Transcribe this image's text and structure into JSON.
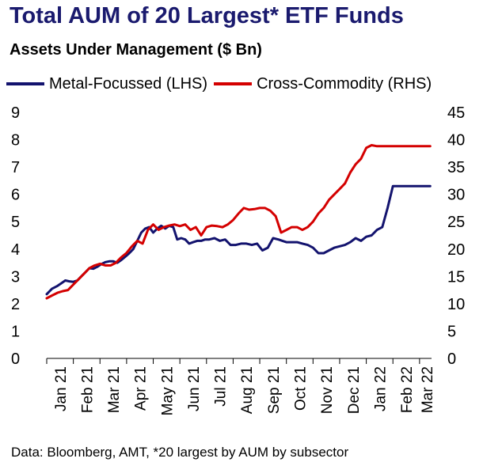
{
  "title": "Total AUM of 20 Largest* ETF Funds",
  "subtitle": "Assets Under Management ($ Bn)",
  "source": "Data: Bloomberg, AMT, *20 largest by AUM by subsector",
  "colors": {
    "title": "#1a1a6e",
    "metal": "#13136e",
    "cross": "#d40000",
    "axis": "#000000"
  },
  "chart_data": {
    "type": "line",
    "x_ticks": [
      "Jan 21",
      "Feb 21",
      "Mar 21",
      "Apr 21",
      "May 21",
      "Jun 21",
      "Jul 21",
      "Aug 21",
      "Sep 21",
      "Oct 21",
      "Nov 21",
      "Dec 21",
      "Jan 22",
      "Feb 22",
      "Mar 22"
    ],
    "y_left": {
      "min": 0,
      "max": 9,
      "ticks": [
        0,
        1,
        2,
        3,
        4,
        5,
        6,
        7,
        8,
        9
      ]
    },
    "y_right": {
      "min": 0,
      "max": 45,
      "ticks": [
        0,
        5,
        10,
        15,
        20,
        25,
        30,
        35,
        40,
        45
      ]
    },
    "grid": false,
    "legend_position": "top-left",
    "x_range": [
      0,
      14.45
    ],
    "series": [
      {
        "name": "Metal-Focussed (LHS)",
        "axis": "left",
        "x": [
          0,
          0.2,
          0.4,
          0.55,
          0.7,
          0.85,
          1.0,
          1.15,
          1.3,
          1.45,
          1.6,
          1.75,
          1.9,
          2.05,
          2.2,
          2.35,
          2.5,
          2.65,
          2.8,
          2.95,
          3.1,
          3.25,
          3.4,
          3.55,
          3.7,
          3.85,
          4.0,
          4.15,
          4.3,
          4.45,
          4.6,
          4.75,
          4.9,
          5.05,
          5.2,
          5.35,
          5.5,
          5.65,
          5.8,
          5.95,
          6.1,
          6.3,
          6.5,
          6.7,
          6.9,
          7.1,
          7.3,
          7.5,
          7.7,
          7.9,
          8.1,
          8.3,
          8.5,
          8.7,
          8.85,
          9.0,
          9.2,
          9.4,
          9.6,
          9.8,
          10.0,
          10.2,
          10.4,
          10.6,
          10.8,
          11.0,
          11.2,
          11.4,
          11.6,
          11.8,
          12.0,
          12.2,
          12.4,
          12.6,
          12.8,
          13.0,
          13.2,
          13.4,
          13.6,
          13.8,
          14.0,
          14.2,
          14.4
        ],
        "y": [
          2.35,
          2.55,
          2.65,
          2.75,
          2.85,
          2.82,
          2.8,
          2.85,
          3.0,
          3.15,
          3.3,
          3.28,
          3.35,
          3.45,
          3.52,
          3.55,
          3.55,
          3.5,
          3.6,
          3.72,
          3.85,
          4.0,
          4.3,
          4.6,
          4.75,
          4.8,
          4.6,
          4.75,
          4.85,
          4.75,
          4.85,
          4.8,
          4.35,
          4.4,
          4.35,
          4.2,
          4.25,
          4.3,
          4.3,
          4.35,
          4.35,
          4.4,
          4.3,
          4.35,
          4.15,
          4.15,
          4.2,
          4.2,
          4.15,
          4.2,
          3.95,
          4.05,
          4.4,
          4.35,
          4.3,
          4.25,
          4.25,
          4.25,
          4.2,
          4.15,
          4.05,
          3.85,
          3.85,
          3.95,
          4.05,
          4.1,
          4.15,
          4.25,
          4.4,
          4.3,
          4.45,
          4.5,
          4.7,
          4.8,
          5.5,
          6.3,
          6.3,
          6.3,
          6.3,
          6.3,
          6.3,
          6.3,
          6.3
        ]
      },
      {
        "name": "Cross-Commodity (RHS)",
        "axis": "right",
        "x": [
          0,
          0.2,
          0.4,
          0.6,
          0.8,
          1.0,
          1.2,
          1.4,
          1.6,
          1.8,
          2.0,
          2.2,
          2.4,
          2.6,
          2.8,
          3.0,
          3.2,
          3.4,
          3.6,
          3.8,
          4.0,
          4.2,
          4.4,
          4.6,
          4.8,
          5.0,
          5.2,
          5.4,
          5.6,
          5.8,
          6.0,
          6.2,
          6.4,
          6.6,
          6.8,
          7.0,
          7.2,
          7.4,
          7.6,
          7.8,
          8.0,
          8.2,
          8.4,
          8.6,
          8.8,
          9.0,
          9.2,
          9.4,
          9.6,
          9.8,
          10.0,
          10.2,
          10.4,
          10.6,
          10.8,
          11.0,
          11.2,
          11.4,
          11.6,
          11.8,
          12.0,
          12.2,
          12.4,
          12.6,
          12.8,
          13.0,
          13.2,
          13.4,
          13.6,
          13.8,
          14.0,
          14.2,
          14.4
        ],
        "y": [
          11.0,
          11.5,
          12.0,
          12.3,
          12.5,
          13.5,
          14.5,
          15.5,
          16.5,
          17.0,
          17.3,
          17.0,
          17.0,
          17.5,
          18.5,
          19.3,
          20.5,
          21.5,
          21.0,
          23.5,
          24.5,
          23.5,
          24.0,
          24.3,
          24.5,
          24.2,
          24.5,
          23.5,
          24.0,
          22.5,
          24.0,
          24.3,
          24.2,
          24.0,
          24.5,
          25.3,
          26.5,
          27.5,
          27.2,
          27.3,
          27.5,
          27.5,
          27.0,
          26.0,
          23.0,
          23.5,
          24.0,
          24.0,
          23.5,
          24.0,
          25.0,
          26.5,
          27.5,
          29.0,
          30.0,
          31.0,
          32.0,
          34.0,
          35.5,
          36.5,
          38.5,
          39.0,
          38.8,
          38.8,
          38.8,
          38.8,
          38.8,
          38.8,
          38.8,
          38.8,
          38.8,
          38.8,
          38.8
        ]
      }
    ]
  }
}
